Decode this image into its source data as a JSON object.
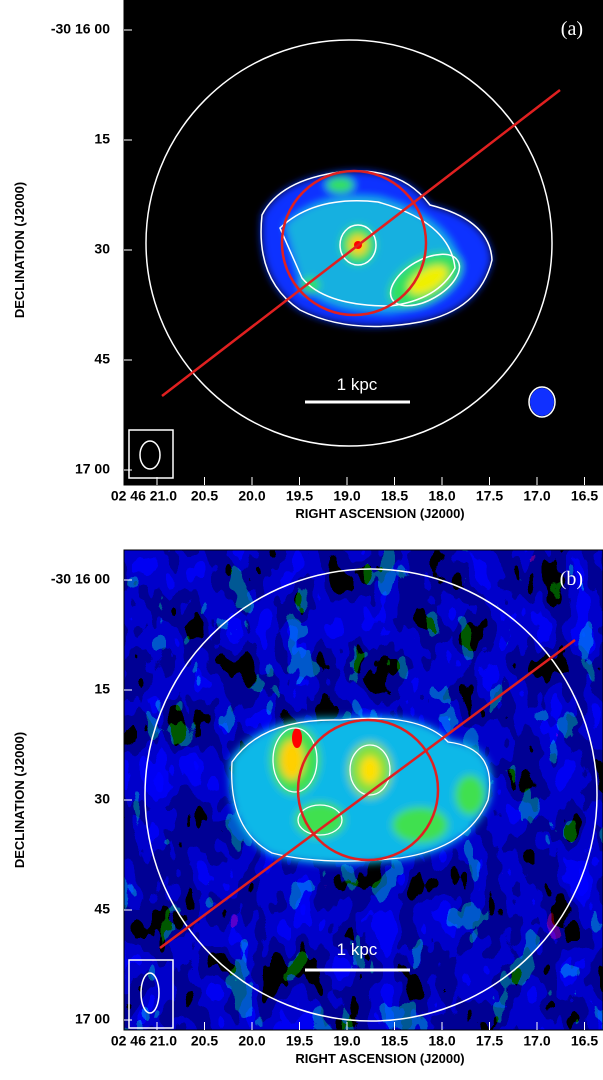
{
  "panels": [
    {
      "label": "(a)",
      "scalebar": "1 kpc",
      "yticks": [
        "-30 16 00",
        "15",
        "30",
        "45",
        "17 00"
      ],
      "xticks": [
        "02 46 21.0",
        "20.5",
        "20.0",
        "19.5",
        "19.0",
        "18.5",
        "18.0",
        "17.5",
        "17.0",
        "16.5"
      ],
      "ylabel": "DECLINATION (J2000)",
      "xlabel": "RIGHT ASCENSION (J2000)"
    },
    {
      "label": "(b)",
      "scalebar": "1 kpc",
      "yticks": [
        "-30 16 00",
        "15",
        "30",
        "45",
        "17 00"
      ],
      "xticks": [
        "02 46 21.0",
        "20.5",
        "20.0",
        "19.5",
        "19.0",
        "18.5",
        "18.0",
        "17.5",
        "17.0",
        "16.5"
      ],
      "ylabel": "DECLINATION (J2000)",
      "xlabel": "RIGHT ASCENSION (J2000)"
    }
  ]
}
